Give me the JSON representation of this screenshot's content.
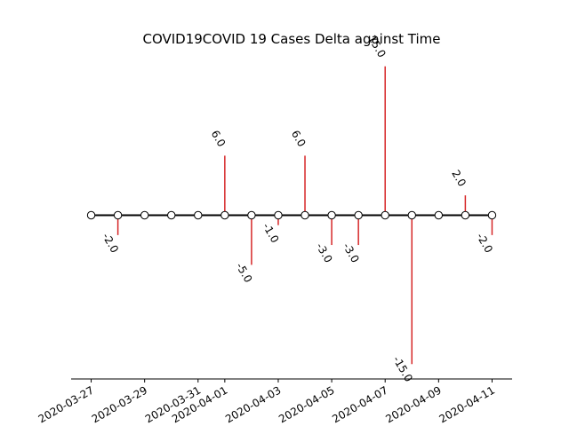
{
  "chart_data": {
    "type": "stem",
    "title": "COVID19COVID 19 Cases Delta against Time",
    "xlabel": "",
    "ylabel": "",
    "x": [
      "2020-03-27",
      "2020-03-28",
      "2020-03-29",
      "2020-03-30",
      "2020-03-31",
      "2020-04-01",
      "2020-04-02",
      "2020-04-03",
      "2020-04-04",
      "2020-04-05",
      "2020-04-06",
      "2020-04-07",
      "2020-04-08",
      "2020-04-09",
      "2020-04-10",
      "2020-04-11"
    ],
    "values": [
      0,
      -2,
      0,
      0,
      0,
      6,
      -5,
      -1,
      6,
      -3,
      -3,
      15,
      -15,
      0,
      2,
      -2
    ],
    "labels": {
      "2020-03-28": "-2.0",
      "2020-04-01": "6.0",
      "2020-04-02": "-5.0",
      "2020-04-03": "-1.0",
      "2020-04-04": "6.0",
      "2020-04-05": "-3.0",
      "2020-04-06": "-3.0",
      "2020-04-07": "15.0",
      "2020-04-08": "-15.0",
      "2020-04-10": "2.0",
      "2020-04-11": "-2.0"
    },
    "xticks": [
      "2020-03-27",
      "2020-03-29",
      "2020-03-31",
      "2020-04-01",
      "2020-04-03",
      "2020-04-05",
      "2020-04-07",
      "2020-04-09",
      "2020-04-11"
    ],
    "ylim": [
      -16.5,
      16.5
    ],
    "grid": false,
    "y_axis_visible": false,
    "colors": {
      "stem": "#d62728",
      "baseline": "#000000",
      "marker_face": "#ffffff",
      "marker_edge": "#000000"
    }
  }
}
